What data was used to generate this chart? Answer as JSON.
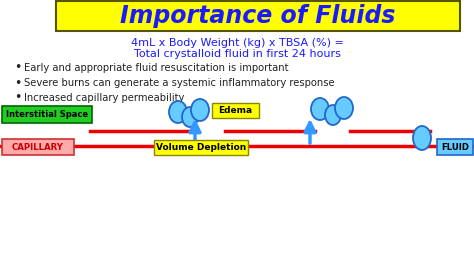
{
  "bg_color": "#ffffff",
  "title_text": "Importance of Fluids",
  "title_bg": "#ffff00",
  "title_color": "#1a1aff",
  "title_border": "#555500",
  "formula_line1": "4mL x Body Weight (kg) x TBSA (%) =",
  "formula_line2": "Total crystalloid fluid in first 24 hours",
  "formula_color": "#1a1aff",
  "bullets": [
    "Early and appropriate fluid resuscitation is important",
    "Severe burns can generate a systemic inflammatory response",
    "Increased capillary permeability"
  ],
  "bullet_color": "#222222",
  "interstitial_label": "Interstitial Space",
  "interstitial_bg": "#22cc22",
  "interstitial_border": "#006600",
  "interstitial_text_color": "#000000",
  "capillary_label": "CAPILLARY",
  "capillary_bg": "#ffaaaa",
  "capillary_border": "#cc3333",
  "capillary_text_color": "#cc0000",
  "edema_label": "Edema",
  "edema_bg": "#ffff00",
  "edema_border": "#888800",
  "edema_text_color": "#000000",
  "vol_dep_label": "Volume Depletion",
  "vol_dep_bg": "#ffff00",
  "vol_dep_border": "#888800",
  "vol_dep_text_color": "#000000",
  "fluid_label": "FLUID",
  "fluid_bg": "#66ccff",
  "fluid_border": "#2266cc",
  "fluid_text_color": "#000000",
  "capillary_line_color": "#ee0000",
  "interstitial_line_color": "#ee0000",
  "arrow_color": "#3399ff",
  "circle_color": "#66ccff",
  "circle_edge": "#2266cc"
}
